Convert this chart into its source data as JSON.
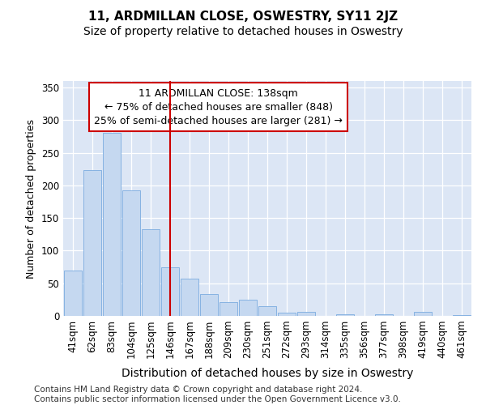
{
  "title": "11, ARDMILLAN CLOSE, OSWESTRY, SY11 2JZ",
  "subtitle": "Size of property relative to detached houses in Oswestry",
  "xlabel": "Distribution of detached houses by size in Oswestry",
  "ylabel": "Number of detached properties",
  "categories": [
    "41sqm",
    "62sqm",
    "83sqm",
    "104sqm",
    "125sqm",
    "146sqm",
    "167sqm",
    "188sqm",
    "209sqm",
    "230sqm",
    "251sqm",
    "272sqm",
    "293sqm",
    "314sqm",
    "335sqm",
    "356sqm",
    "377sqm",
    "398sqm",
    "419sqm",
    "440sqm",
    "461sqm"
  ],
  "values": [
    70,
    223,
    280,
    192,
    133,
    74,
    57,
    34,
    21,
    25,
    15,
    5,
    6,
    0,
    2,
    0,
    2,
    0,
    6,
    0,
    1
  ],
  "bar_color": "#c5d8f0",
  "bar_edge_color": "#7aabe0",
  "vline_x_idx": 5,
  "vline_color": "#cc0000",
  "annotation_line1": "11 ARDMILLAN CLOSE: 138sqm",
  "annotation_line2": "← 75% of detached houses are smaller (848)",
  "annotation_line3": "25% of semi-detached houses are larger (281) →",
  "annotation_box_color": "#ffffff",
  "annotation_box_edge": "#cc0000",
  "ylim": [
    0,
    360
  ],
  "yticks": [
    0,
    50,
    100,
    150,
    200,
    250,
    300,
    350
  ],
  "fig_bg_color": "#ffffff",
  "plot_bg_color": "#dce6f5",
  "grid_color": "#ffffff",
  "footer": "Contains HM Land Registry data © Crown copyright and database right 2024.\nContains public sector information licensed under the Open Government Licence v3.0.",
  "title_fontsize": 11,
  "subtitle_fontsize": 10,
  "xlabel_fontsize": 10,
  "ylabel_fontsize": 9,
  "tick_fontsize": 8.5,
  "footer_fontsize": 7.5,
  "annot_fontsize": 9
}
